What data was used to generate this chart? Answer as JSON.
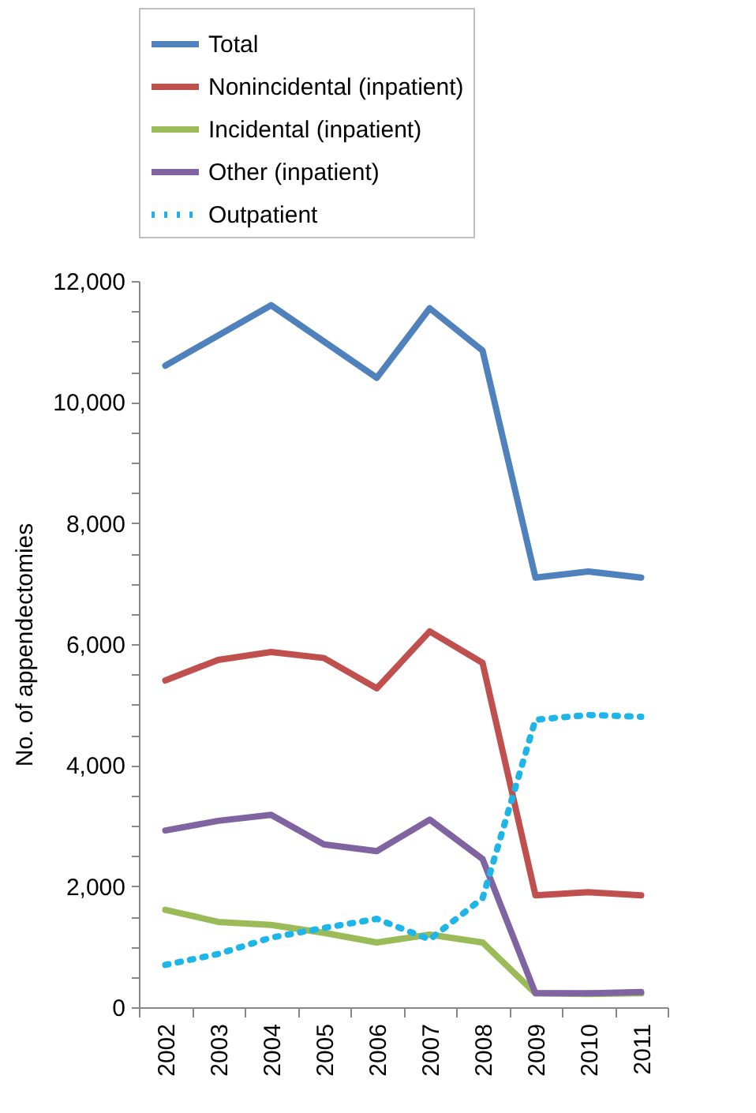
{
  "chart_data": {
    "type": "line",
    "ylabel": "No. of appendectomies",
    "categories": [
      "2002",
      "2003",
      "2004",
      "2005",
      "2006",
      "2007",
      "2008",
      "2009",
      "2010",
      "2011"
    ],
    "ylim": [
      0,
      12000
    ],
    "yticks": [
      0,
      {
        "value": 500,
        "label": null
      },
      {
        "value": 1000,
        "label": null
      },
      {
        "value": 1500,
        "label": null
      },
      {
        "value": 2000,
        "label": "2,000"
      },
      {
        "value": 2500,
        "label": null
      },
      {
        "value": 3000,
        "label": null
      },
      {
        "value": 3500,
        "label": null
      },
      {
        "value": 4000,
        "label": "4,000"
      },
      {
        "value": 4500,
        "label": null
      },
      {
        "value": 5000,
        "label": null
      },
      {
        "value": 5500,
        "label": null
      },
      {
        "value": 6000,
        "label": "6,000"
      },
      {
        "value": 6500,
        "label": null
      },
      {
        "value": 7000,
        "label": null
      },
      {
        "value": 7500,
        "label": null
      },
      {
        "value": 8000,
        "label": "8,000"
      },
      {
        "value": 8500,
        "label": null
      },
      {
        "value": 9000,
        "label": null
      },
      {
        "value": 9500,
        "label": null
      },
      {
        "value": 10000,
        "label": "10,000"
      },
      {
        "value": 10500,
        "label": null
      },
      {
        "value": 11000,
        "label": null
      },
      {
        "value": 11500,
        "label": null
      },
      {
        "value": 12000,
        "label": "12,000"
      }
    ],
    "legend": "top",
    "grid": false,
    "marker": "none",
    "series": [
      {
        "name": "Total",
        "color": "#4f81bd",
        "line_style": "solid",
        "values": [
          10600,
          11100,
          11600,
          11000,
          10400,
          11550,
          10850,
          7100,
          7200,
          7100
        ]
      },
      {
        "name": "Nonincidental (inpatient)",
        "color": "#c0504d",
        "line_style": "solid",
        "values": [
          5400,
          5740,
          5870,
          5770,
          5270,
          6210,
          5690,
          1850,
          1900,
          1850
        ]
      },
      {
        "name": "Incidental (inpatient)",
        "color": "#9bbb59",
        "line_style": "solid",
        "values": [
          1610,
          1410,
          1360,
          1230,
          1070,
          1200,
          1070,
          230,
          220,
          230
        ]
      },
      {
        "name": "Other (inpatient)",
        "color": "#8064a2",
        "line_style": "solid",
        "values": [
          2920,
          3080,
          3180,
          2690,
          2580,
          3100,
          2450,
          230,
          230,
          250
        ]
      },
      {
        "name": "Outpatient",
        "color": "#1fb5e8",
        "line_style": "dotted",
        "values": [
          700,
          880,
          1150,
          1310,
          1460,
          1120,
          1800,
          4750,
          4830,
          4800
        ]
      }
    ]
  }
}
